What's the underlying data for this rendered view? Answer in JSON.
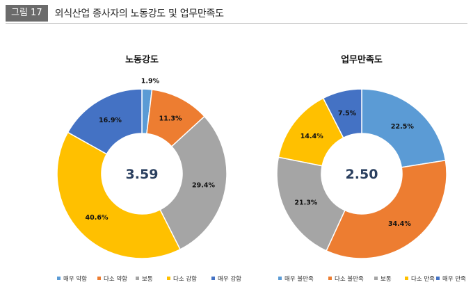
{
  "figure": {
    "badge": "그림 17",
    "title": "외식산업 종사자의 노동강도 및 업무만족도"
  },
  "chart_data": [
    {
      "type": "pie",
      "title": "노동강도",
      "center_value": "3.59",
      "categories": [
        "매우 약함",
        "다소 약함",
        "보통",
        "다소 강함",
        "매우 강함"
      ],
      "values": [
        1.9,
        11.3,
        29.4,
        40.6,
        16.9
      ],
      "labels": [
        "1.9%",
        "11.3%",
        "29.4%",
        "40.6%",
        "16.9%"
      ],
      "colors": [
        "#5b9bd5",
        "#ed7d31",
        "#a5a5a5",
        "#ffc000",
        "#4472c4"
      ],
      "legend": "bottom"
    },
    {
      "type": "pie",
      "title": "업무만족도",
      "center_value": "2.50",
      "categories": [
        "매우 불만족",
        "다소 불만족",
        "보통",
        "다소 만족",
        "매우 만족"
      ],
      "values": [
        22.5,
        34.4,
        21.3,
        14.4,
        7.5
      ],
      "labels": [
        "22.5%",
        "34.4%",
        "21.3%",
        "14.4%",
        "7.5%"
      ],
      "colors": [
        "#5b9bd5",
        "#ed7d31",
        "#a5a5a5",
        "#ffc000",
        "#4472c4"
      ],
      "legend": "bottom"
    }
  ]
}
